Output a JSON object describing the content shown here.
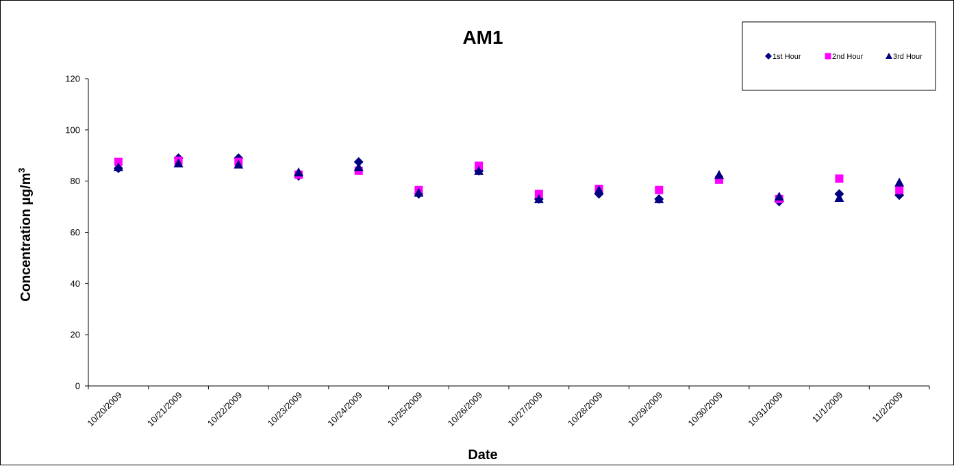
{
  "chart_data": {
    "type": "scatter",
    "title": "AM1",
    "xlabel": "Date",
    "ylabel_main": "Concentration  µg/m",
    "ylabel_sup": "3",
    "x": [
      "10/20/2009",
      "10/21/2009",
      "10/22/2009",
      "10/23/2009",
      "10/24/2009",
      "10/25/2009",
      "10/26/2009",
      "10/27/2009",
      "10/28/2009",
      "10/29/2009",
      "10/30/2009",
      "10/31/2009",
      "11/1/2009",
      "11/2/2009"
    ],
    "ylim": [
      0,
      120
    ],
    "yticks": [
      "0",
      "20",
      "40",
      "60",
      "80",
      "100",
      "120"
    ],
    "grid": false,
    "legend_position": "top-right",
    "series": [
      {
        "name": "1st Hour",
        "marker": "diamond",
        "color": "#000080",
        "values": [
          85,
          89,
          89,
          82,
          87.5,
          75,
          84,
          73,
          75,
          73,
          81,
          72,
          75,
          74.5
        ]
      },
      {
        "name": "2nd Hour",
        "marker": "square",
        "color": "#FF00FF",
        "values": [
          87.5,
          88,
          87.5,
          82.5,
          84,
          76.5,
          86,
          75,
          77,
          76.5,
          80.5,
          73,
          81,
          76.5
        ]
      },
      {
        "name": "3rd Hour",
        "marker": "triangle",
        "color": "#000080",
        "values": [
          85.5,
          87,
          86.5,
          83.5,
          85.5,
          75.5,
          84,
          73,
          76.5,
          73,
          82.5,
          74,
          73.5,
          79.5
        ]
      }
    ]
  }
}
